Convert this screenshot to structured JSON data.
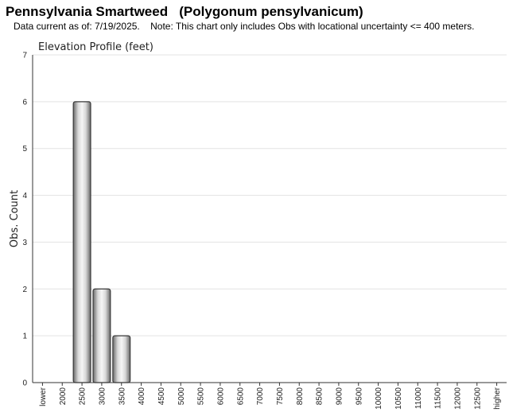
{
  "header": {
    "title": "Pennsylvania Smartweed   (Polygonum pensylvanicum)",
    "subtitle": "Data current as of: 7/19/2025.    Note: This chart only includes Obs with locational uncertainty <= 400 meters."
  },
  "chart_data": {
    "type": "bar",
    "title": "Elevation Profile (feet)",
    "xlabel": "",
    "ylabel": "Obs. Count",
    "ylim": [
      0,
      7
    ],
    "yticks": [
      0,
      1,
      2,
      3,
      4,
      5,
      6,
      7
    ],
    "grid": true,
    "categories": [
      "lower",
      "2000",
      "2500",
      "3000",
      "3500",
      "4000",
      "4500",
      "5000",
      "5500",
      "6000",
      "6500",
      "7000",
      "7500",
      "8000",
      "8500",
      "9000",
      "9500",
      "10000",
      "10500",
      "11000",
      "11500",
      "12000",
      "12500",
      "higher"
    ],
    "values": [
      0,
      0,
      6,
      2,
      1,
      0,
      0,
      0,
      0,
      0,
      0,
      0,
      0,
      0,
      0,
      0,
      0,
      0,
      0,
      0,
      0,
      0,
      0,
      0
    ],
    "colors": {
      "bar_light": "#f4f4f4",
      "bar_dark": "#6a6a6a",
      "bar_edge": "#3a3a3a",
      "grid": "#e3e3e3",
      "axis": "#333333"
    }
  }
}
